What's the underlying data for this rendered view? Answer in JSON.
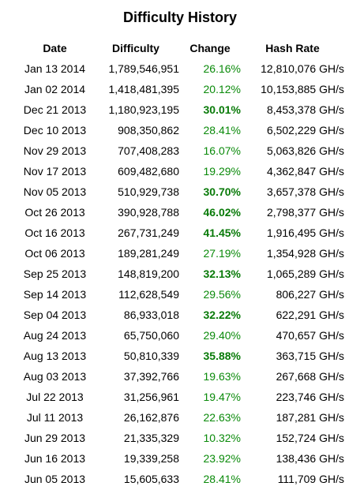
{
  "title": "Difficulty History",
  "colors": {
    "change_text": "#0a8a0a",
    "change_bold": "#087a08"
  },
  "columns": {
    "date": "Date",
    "difficulty": "Difficulty",
    "change": "Change",
    "hash_rate": "Hash Rate"
  },
  "rows": [
    {
      "date": "Jan 13 2014",
      "difficulty": "1,789,546,951",
      "change": "26.16%",
      "bold": false,
      "hash_rate": "12,810,076 GH/s"
    },
    {
      "date": "Jan 02 2014",
      "difficulty": "1,418,481,395",
      "change": "20.12%",
      "bold": false,
      "hash_rate": "10,153,885 GH/s"
    },
    {
      "date": "Dec 21 2013",
      "difficulty": "1,180,923,195",
      "change": "30.01%",
      "bold": true,
      "hash_rate": "8,453,378 GH/s"
    },
    {
      "date": "Dec 10 2013",
      "difficulty": "908,350,862",
      "change": "28.41%",
      "bold": false,
      "hash_rate": "6,502,229 GH/s"
    },
    {
      "date": "Nov 29 2013",
      "difficulty": "707,408,283",
      "change": "16.07%",
      "bold": false,
      "hash_rate": "5,063,826 GH/s"
    },
    {
      "date": "Nov 17 2013",
      "difficulty": "609,482,680",
      "change": "19.29%",
      "bold": false,
      "hash_rate": "4,362,847 GH/s"
    },
    {
      "date": "Nov 05 2013",
      "difficulty": "510,929,738",
      "change": "30.70%",
      "bold": true,
      "hash_rate": "3,657,378 GH/s"
    },
    {
      "date": "Oct 26 2013",
      "difficulty": "390,928,788",
      "change": "46.02%",
      "bold": true,
      "hash_rate": "2,798,377 GH/s"
    },
    {
      "date": "Oct 16 2013",
      "difficulty": "267,731,249",
      "change": "41.45%",
      "bold": true,
      "hash_rate": "1,916,495 GH/s"
    },
    {
      "date": "Oct 06 2013",
      "difficulty": "189,281,249",
      "change": "27.19%",
      "bold": false,
      "hash_rate": "1,354,928 GH/s"
    },
    {
      "date": "Sep 25 2013",
      "difficulty": "148,819,200",
      "change": "32.13%",
      "bold": true,
      "hash_rate": "1,065,289 GH/s"
    },
    {
      "date": "Sep 14 2013",
      "difficulty": "112,628,549",
      "change": "29.56%",
      "bold": false,
      "hash_rate": "806,227 GH/s"
    },
    {
      "date": "Sep 04 2013",
      "difficulty": "86,933,018",
      "change": "32.22%",
      "bold": true,
      "hash_rate": "622,291 GH/s"
    },
    {
      "date": "Aug 24 2013",
      "difficulty": "65,750,060",
      "change": "29.40%",
      "bold": false,
      "hash_rate": "470,657 GH/s"
    },
    {
      "date": "Aug 13 2013",
      "difficulty": "50,810,339",
      "change": "35.88%",
      "bold": true,
      "hash_rate": "363,715 GH/s"
    },
    {
      "date": "Aug 03 2013",
      "difficulty": "37,392,766",
      "change": "19.63%",
      "bold": false,
      "hash_rate": "267,668 GH/s"
    },
    {
      "date": "Jul 22 2013",
      "difficulty": "31,256,961",
      "change": "19.47%",
      "bold": false,
      "hash_rate": "223,746 GH/s"
    },
    {
      "date": "Jul 11 2013",
      "difficulty": "26,162,876",
      "change": "22.63%",
      "bold": false,
      "hash_rate": "187,281 GH/s"
    },
    {
      "date": "Jun 29 2013",
      "difficulty": "21,335,329",
      "change": "10.32%",
      "bold": false,
      "hash_rate": "152,724 GH/s"
    },
    {
      "date": "Jun 16 2013",
      "difficulty": "19,339,258",
      "change": "23.92%",
      "bold": false,
      "hash_rate": "138,436 GH/s"
    },
    {
      "date": "Jun 05 2013",
      "difficulty": "15,605,633",
      "change": "28.41%",
      "bold": false,
      "hash_rate": "111,709 GH/s"
    }
  ]
}
